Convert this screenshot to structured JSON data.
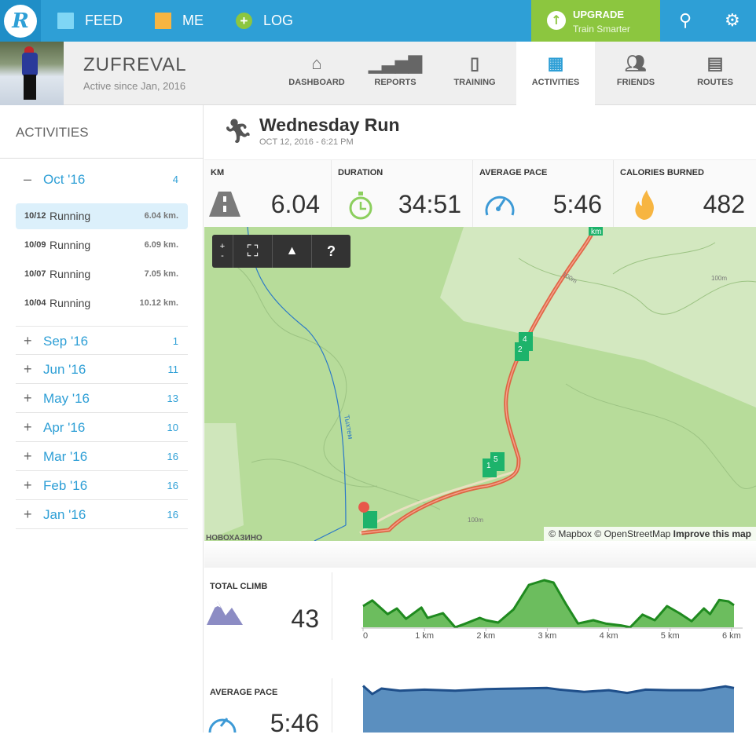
{
  "topbar": {
    "logo": "R",
    "feed": "FEED",
    "me": "ME",
    "log": "LOG",
    "upgrade_title": "UPGRADE",
    "upgrade_sub": "Train Smarter",
    "colors": {
      "bar": "#2e9fd6",
      "upgrade": "#8cc63f"
    }
  },
  "profile": {
    "name": "ZUFREVAL",
    "since": "Active since Jan, 2016",
    "tabs": [
      {
        "label": "DASHBOARD",
        "icon": "home-icon"
      },
      {
        "label": "REPORTS",
        "icon": "bar-chart-icon"
      },
      {
        "label": "TRAINING",
        "icon": "clipboard-icon"
      },
      {
        "label": "ACTIVITIES",
        "icon": "calendar-icon",
        "active": true
      },
      {
        "label": "FRIENDS",
        "icon": "people-icon"
      },
      {
        "label": "ROUTES",
        "icon": "map-icon"
      }
    ]
  },
  "sidebar": {
    "title": "ACTIVITIES",
    "expanded": {
      "sign": "–",
      "label": "Oct '16",
      "count": "4"
    },
    "activities": [
      {
        "date": "10/12",
        "name": "Running",
        "km": "6.04 km."
      },
      {
        "date": "10/09",
        "name": "Running",
        "km": "6.09 km."
      },
      {
        "date": "10/07",
        "name": "Running",
        "km": "7.05 km."
      },
      {
        "date": "10/04",
        "name": "Running",
        "km": "10.12 km."
      }
    ],
    "months": [
      {
        "sign": "+",
        "label": "Sep '16",
        "count": "1"
      },
      {
        "sign": "+",
        "label": "Jun '16",
        "count": "11"
      },
      {
        "sign": "+",
        "label": "May '16",
        "count": "13"
      },
      {
        "sign": "+",
        "label": "Apr '16",
        "count": "10"
      },
      {
        "sign": "+",
        "label": "Mar '16",
        "count": "16"
      },
      {
        "sign": "+",
        "label": "Feb '16",
        "count": "16"
      },
      {
        "sign": "+",
        "label": "Jan '16",
        "count": "16"
      }
    ]
  },
  "activity": {
    "title": "Wednesday Run",
    "date": "OCT 12, 2016 - 6:21 PM"
  },
  "stats": [
    {
      "label": "KM",
      "value": "6.04"
    },
    {
      "label": "DURATION",
      "value": "34:51"
    },
    {
      "label": "AVERAGE PACE",
      "value": "5:46"
    },
    {
      "label": "CALORIES BURNED",
      "value": "482"
    }
  ],
  "map": {
    "zoom_in": "+",
    "zoom_out": "-",
    "help": "?",
    "place": "НОВОХАЗИНО",
    "river": "Тыхтем",
    "contour": "100m",
    "km_markers": [
      "1",
      "2",
      "4",
      "5",
      "km"
    ],
    "attribution": {
      "mapbox": "© Mapbox",
      "osm": "© OpenStreetMap",
      "improve": "Improve this map"
    }
  },
  "climb": {
    "label": "TOTAL CLIMB",
    "value": "43"
  },
  "pace": {
    "label": "AVERAGE PACE",
    "value": "5:46"
  },
  "chart_data": [
    {
      "type": "area",
      "title": "",
      "x_ticks": [
        "0",
        "1 km",
        "2 km",
        "3 km",
        "4 km",
        "5 km",
        "6 km"
      ],
      "xlim": [
        0,
        6.04
      ],
      "color": "#6cbd5e",
      "x": [
        0,
        0.15,
        0.4,
        0.55,
        0.7,
        0.95,
        1.05,
        1.3,
        1.5,
        1.65,
        1.9,
        2.0,
        2.2,
        2.45,
        2.7,
        2.95,
        3.1,
        3.3,
        3.5,
        3.75,
        3.95,
        4.2,
        4.35,
        4.55,
        4.75,
        4.95,
        5.15,
        5.35,
        5.55,
        5.65,
        5.8,
        5.95,
        6.04
      ],
      "y": [
        45,
        57,
        28,
        40,
        18,
        42,
        20,
        30,
        0,
        7,
        20,
        15,
        10,
        38,
        90,
        100,
        95,
        50,
        8,
        15,
        8,
        4,
        0,
        27,
        15,
        45,
        30,
        13,
        40,
        28,
        58,
        55,
        47
      ]
    },
    {
      "type": "area",
      "title": "",
      "xlim": [
        0,
        6.04
      ],
      "color": "#5b8fbf",
      "x": [
        0,
        0.15,
        0.3,
        0.6,
        1,
        1.5,
        2,
        2.5,
        3,
        3.2,
        3.6,
        4,
        4.3,
        4.6,
        5,
        5.5,
        5.9,
        6.04
      ],
      "y": [
        95,
        80,
        90,
        86,
        88,
        86,
        89,
        90,
        91,
        88,
        84,
        87,
        82,
        88,
        87,
        87,
        94,
        91
      ]
    }
  ]
}
